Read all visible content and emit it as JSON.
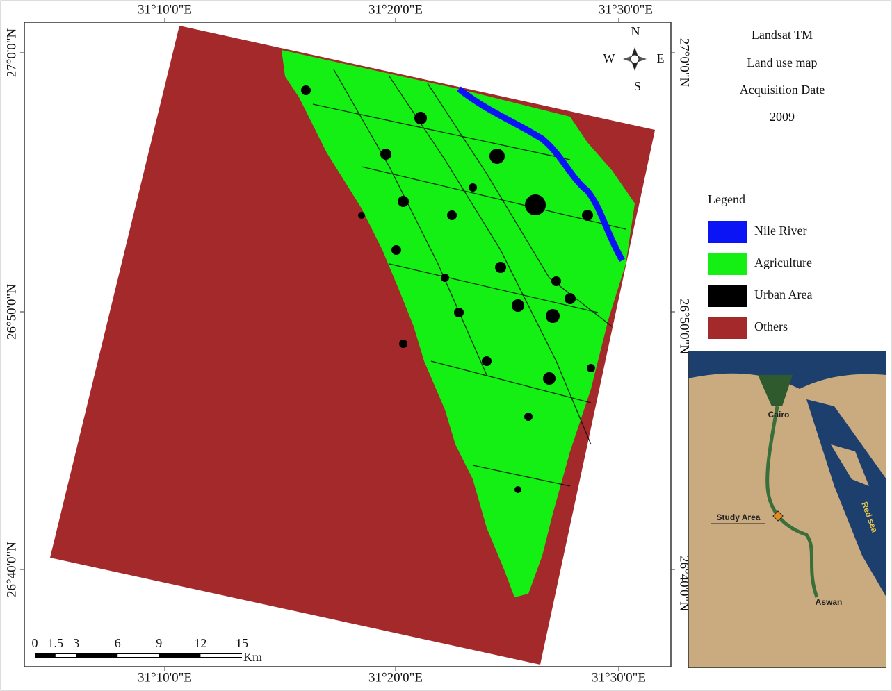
{
  "map": {
    "longitude_labels": [
      "31°10'0\"E",
      "31°20'0\"E",
      "31°30'0\"E"
    ],
    "latitude_labels": [
      "27°0'0\"N",
      "26°50'0\"N",
      "26°40'0\"N"
    ],
    "info": [
      "Landsat TM",
      "Land use map",
      "Acquisition Date",
      "2009"
    ],
    "legend": {
      "title": "Legend",
      "items": [
        {
          "label": "Nile River",
          "color": "#0a14f5"
        },
        {
          "label": "Agriculture",
          "color": "#14f014"
        },
        {
          "label": "Urban Area",
          "color": "#000000"
        },
        {
          "label": "Others",
          "color": "#a3292b"
        }
      ]
    },
    "compass": {
      "n": "N",
      "e": "E",
      "s": "S",
      "w": "W"
    },
    "scale": {
      "ticks": [
        0,
        1.5,
        3,
        6,
        9,
        12,
        15
      ],
      "unit": "Km"
    },
    "inset": {
      "labels": [
        "Cairo",
        "Study Area",
        "Red sea",
        "Aswan"
      ]
    }
  }
}
